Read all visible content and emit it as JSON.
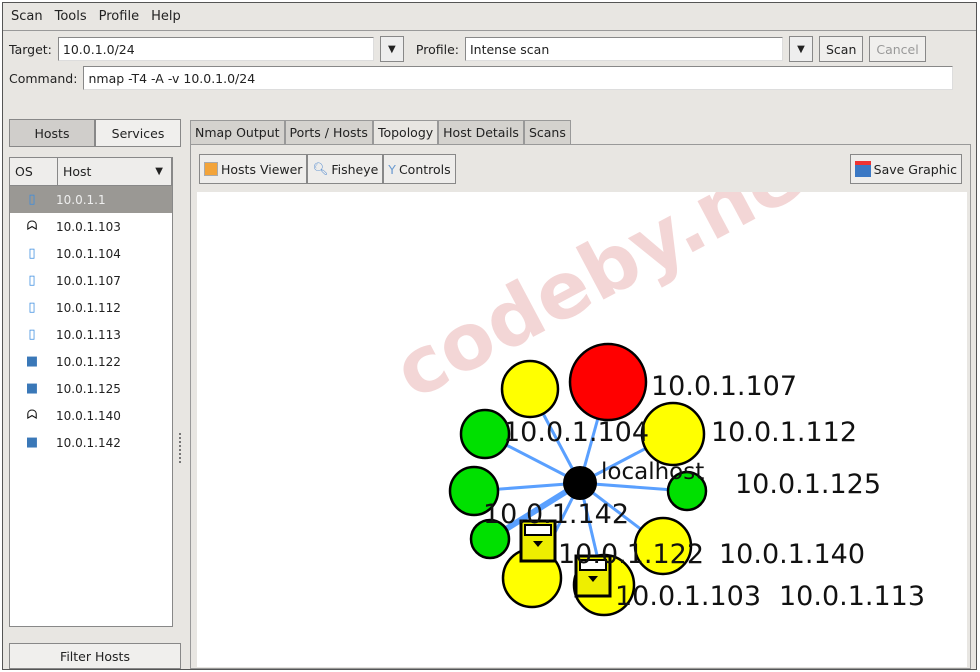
{
  "menu": [
    "Scan",
    "Tools",
    "Profile",
    "Help"
  ],
  "target": {
    "label": "Target:",
    "value": "10.0.1.0/24"
  },
  "profile": {
    "label": "Profile:",
    "value": "Intense scan"
  },
  "buttons": {
    "scan": "Scan",
    "cancel": "Cancel",
    "filter_hosts": "Filter Hosts"
  },
  "command": {
    "label": "Command:",
    "value": "nmap -T4 -A -v 10.0.1.0/24"
  },
  "left_tabs": [
    "Hosts",
    "Services"
  ],
  "host_columns": [
    "OS",
    "Host"
  ],
  "hosts": [
    {
      "ip": "10.0.1.1",
      "os": "mac-icon",
      "selected": true
    },
    {
      "ip": "10.0.1.103",
      "os": "linux-icon"
    },
    {
      "ip": "10.0.1.104",
      "os": "mac-icon"
    },
    {
      "ip": "10.0.1.107",
      "os": "mac-icon"
    },
    {
      "ip": "10.0.1.112",
      "os": "mac-icon"
    },
    {
      "ip": "10.0.1.113",
      "os": "mac-icon"
    },
    {
      "ip": "10.0.1.122",
      "os": "macos-server-icon"
    },
    {
      "ip": "10.0.1.125",
      "os": "macos-server-icon"
    },
    {
      "ip": "10.0.1.140",
      "os": "linux-icon"
    },
    {
      "ip": "10.0.1.142",
      "os": "macos-server-icon"
    }
  ],
  "tabs": [
    "Nmap Output",
    "Ports / Hosts",
    "Topology",
    "Host Details",
    "Scans"
  ],
  "active_tab": "Topology",
  "toolbar": {
    "hosts_viewer": "Hosts Viewer",
    "fisheye": "Fisheye",
    "controls": "Controls",
    "save_graphic": "Save Graphic"
  },
  "topology": {
    "center": "localhost",
    "colors": {
      "green": "#00e000",
      "yellow": "#ffff00",
      "red": "#ff0000",
      "edge": "#5aa0ff"
    },
    "circles": [
      "yellow",
      "red",
      "yellow",
      "green",
      "green",
      "green",
      "green",
      "yellow",
      "yellow",
      "yellow"
    ],
    "labels": [
      "10.0.1.107",
      "10.0.1.112",
      "10.0.1.104",
      "10.0.1.142",
      "10.0.1.125",
      "10.0.1.122",
      "10.0.1.140",
      "10.0.1.103",
      "10.0.1.113"
    ]
  },
  "watermark": "codeby.net"
}
